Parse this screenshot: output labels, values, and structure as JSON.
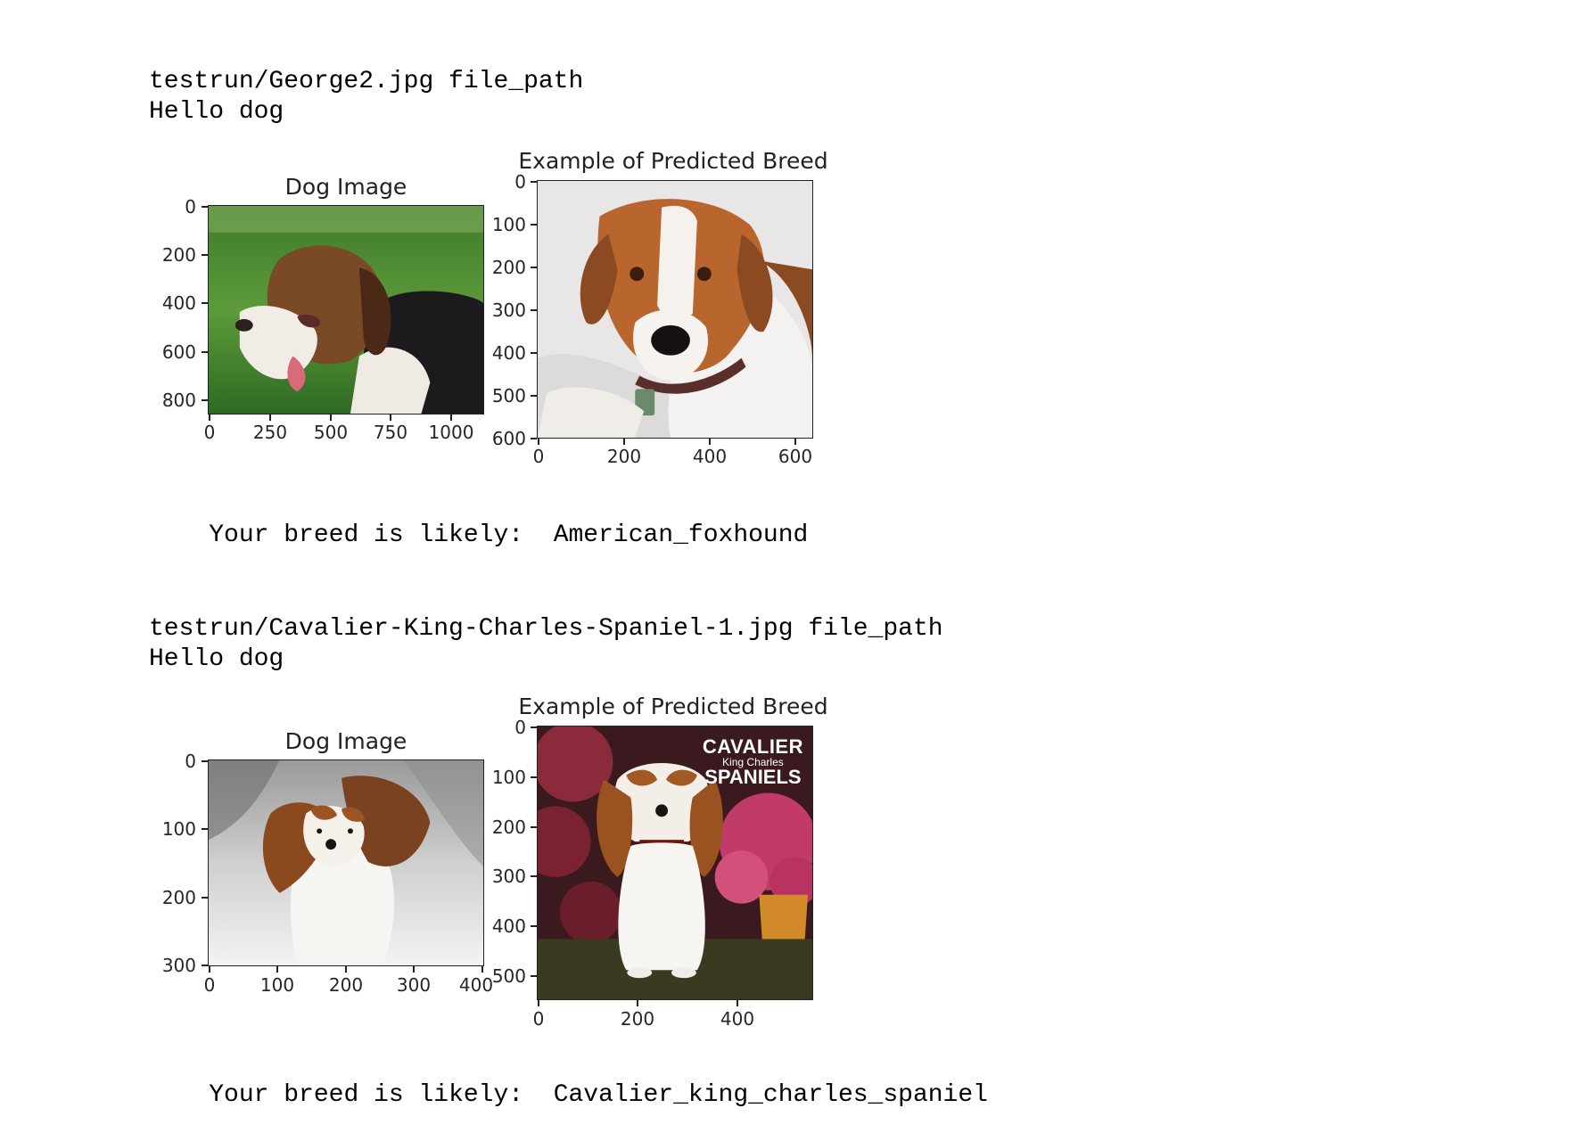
{
  "results": [
    {
      "file_line": "testrun/George2.jpg file_path",
      "greeting": "Hello dog",
      "left_title": "Dog Image",
      "right_title": "Example of Predicted Breed",
      "left_y_ticks": [
        "0",
        "200",
        "400",
        "600",
        "800"
      ],
      "left_x_ticks": [
        "0",
        "250",
        "500",
        "750",
        "1000"
      ],
      "right_y_ticks": [
        "0",
        "100",
        "200",
        "300",
        "400",
        "500",
        "600"
      ],
      "right_x_ticks": [
        "0",
        "200",
        "400",
        "600"
      ],
      "breed_label": "Your breed is likely:",
      "breed_value": "American_foxhound"
    },
    {
      "file_line": "testrun/Cavalier-King-Charles-Spaniel-1.jpg file_path",
      "greeting": "Hello dog",
      "left_title": "Dog Image",
      "right_title": "Example of Predicted Breed",
      "left_y_ticks": [
        "0",
        "100",
        "200",
        "300"
      ],
      "left_x_ticks": [
        "0",
        "100",
        "200",
        "300",
        "400"
      ],
      "right_y_ticks": [
        "0",
        "100",
        "200",
        "300",
        "400",
        "500"
      ],
      "right_x_ticks": [
        "0",
        "200",
        "400"
      ],
      "breed_label": "Your breed is likely:",
      "breed_value": "Cavalier_king_charles_spaniel",
      "calendar_text": [
        "CAVALIER",
        "King Charles",
        "SPANIELS"
      ]
    }
  ]
}
